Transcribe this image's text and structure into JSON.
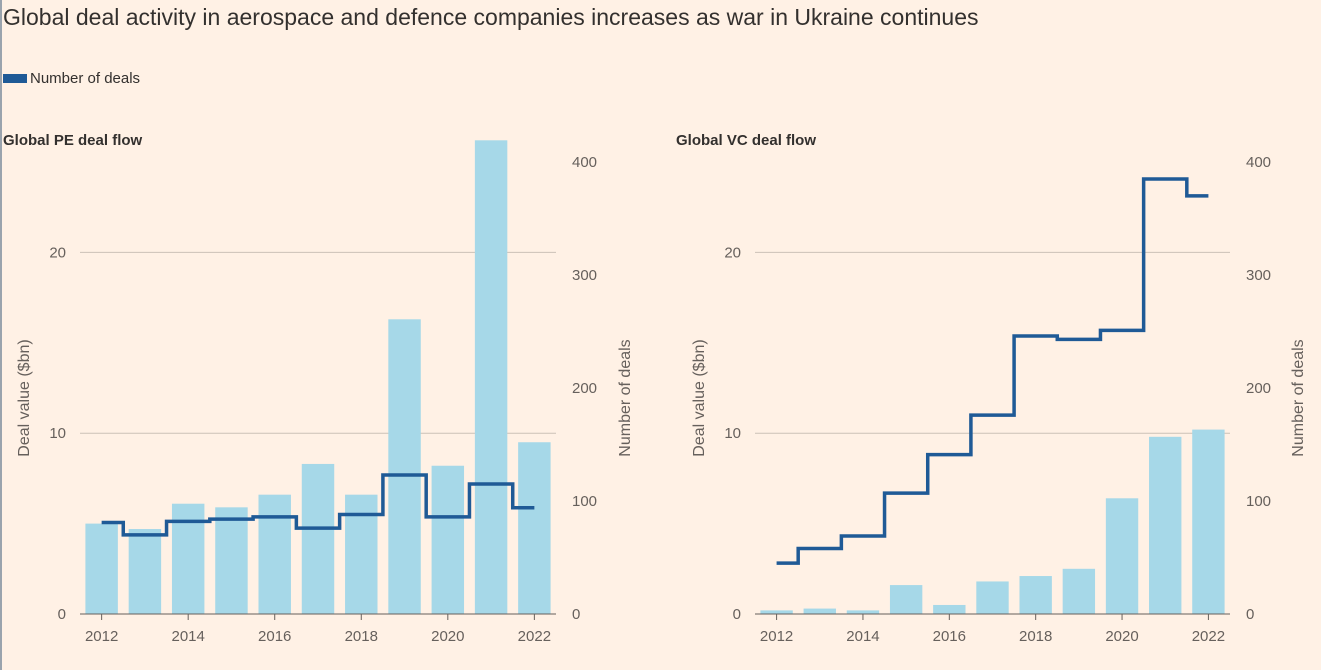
{
  "title": "Global deal activity in aerospace and defence companies increases as war in Ukraine continues",
  "legend": {
    "label": "Number of deals",
    "color": "#1f5a96"
  },
  "colors": {
    "bar": "#a6d8e8",
    "line": "#1f5a96",
    "grid": "#ccc1b7",
    "background": "#fff1e5"
  },
  "chart_data": [
    {
      "type": "bar",
      "subtitle": "Global PE deal flow",
      "x": [
        2012,
        2013,
        2014,
        2015,
        2016,
        2017,
        2018,
        2019,
        2020,
        2021,
        2022
      ],
      "x_ticks": [
        "2012",
        "2014",
        "2016",
        "2018",
        "2020",
        "2022"
      ],
      "y_left_label": "Deal value ($bn)",
      "y_left_ticks": [
        "0",
        "10",
        "20"
      ],
      "y_left_lim": [
        0,
        25
      ],
      "y_right_label": "Number of deals",
      "y_right_ticks": [
        "0",
        "100",
        "200",
        "300",
        "400"
      ],
      "y_right_lim": [
        0,
        400
      ],
      "bars": [
        5.0,
        4.7,
        6.1,
        5.9,
        6.6,
        8.3,
        6.6,
        16.3,
        8.2,
        26.2,
        9.5
      ],
      "line": [
        81,
        70,
        82,
        84,
        86,
        76,
        88,
        123,
        86,
        115,
        94
      ]
    },
    {
      "type": "bar",
      "subtitle": "Global VC deal flow",
      "x": [
        2012,
        2013,
        2014,
        2015,
        2016,
        2017,
        2018,
        2019,
        2020,
        2021,
        2022
      ],
      "x_ticks": [
        "2012",
        "2014",
        "2016",
        "2018",
        "2020",
        "2022"
      ],
      "y_left_label": "Deal value ($bn)",
      "y_left_ticks": [
        "0",
        "10",
        "20"
      ],
      "y_left_lim": [
        0,
        25
      ],
      "y_right_label": "Number of deals",
      "y_right_ticks": [
        "0",
        "100",
        "200",
        "300",
        "400"
      ],
      "y_right_lim": [
        0,
        400
      ],
      "bars": [
        0.2,
        0.3,
        0.2,
        1.6,
        0.5,
        1.8,
        2.1,
        2.5,
        6.4,
        9.8,
        10.2
      ],
      "line": [
        45,
        58,
        69,
        107,
        141,
        176,
        246,
        243,
        251,
        385,
        370
      ]
    }
  ]
}
